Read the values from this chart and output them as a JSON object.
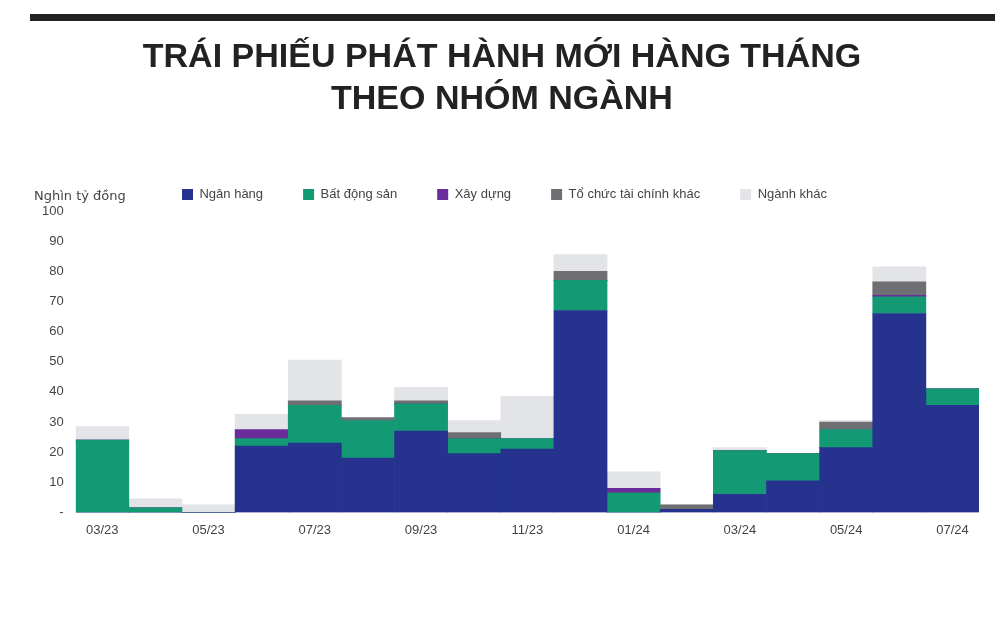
{
  "chart_data": {
    "type": "bar",
    "title": "TRÁI PHIẾU PHÁT HÀNH MỚI HÀNG THÁNG\nTHEO NHÓM NGÀNH",
    "ylabel": "Nghìn tỷ đồng",
    "categories": [
      "03/23",
      null,
      "05/23",
      null,
      "07/23",
      null,
      "09/23",
      null,
      "11/23",
      null,
      "01/24",
      null,
      "03/24",
      null,
      "05/24",
      null,
      "07/24"
    ],
    "stacked": true,
    "legend": "top",
    "grid": false,
    "ylim": [
      0,
      100
    ],
    "yticks": [
      {
        "value": 0,
        "label": "-"
      },
      10,
      20,
      30,
      40,
      50,
      60,
      70,
      80,
      90,
      100
    ],
    "series": [
      {
        "name": "Ngân hàng",
        "color": "#25338f",
        "values": [
          0,
          0,
          0,
          22,
          23,
          18,
          27,
          19.5,
          21,
          67,
          0,
          1,
          6,
          10.5,
          21.5,
          66,
          35.5
        ]
      },
      {
        "name": "Bất động sản",
        "color": "#139a74",
        "values": [
          24,
          1.5,
          0,
          2.5,
          12.5,
          12.5,
          9,
          5,
          3.5,
          10,
          6.5,
          0,
          14.5,
          9,
          6,
          5.5,
          5.5
        ]
      },
      {
        "name": "Xây dựng",
        "color": "#6a2c9b",
        "values": [
          0,
          0,
          0,
          3,
          0,
          0,
          0,
          0,
          0,
          0,
          1.5,
          0,
          0,
          0,
          0,
          0.5,
          0
        ]
      },
      {
        "name": "Tổ chức tài chính khác",
        "color": "#6e6e73",
        "values": [
          0,
          0,
          0,
          null,
          1.5,
          1,
          1,
          2,
          null,
          3,
          0,
          1.5,
          0,
          0,
          2.5,
          4.5,
          0
        ]
      },
      {
        "name": "Ngành khác",
        "color": "#e2e4e8",
        "values": [
          4.5,
          3,
          2.5,
          5,
          13.5,
          null,
          4.5,
          4,
          14,
          5.5,
          5.5,
          0,
          1,
          null,
          0.5,
          5,
          0
        ]
      }
    ]
  }
}
